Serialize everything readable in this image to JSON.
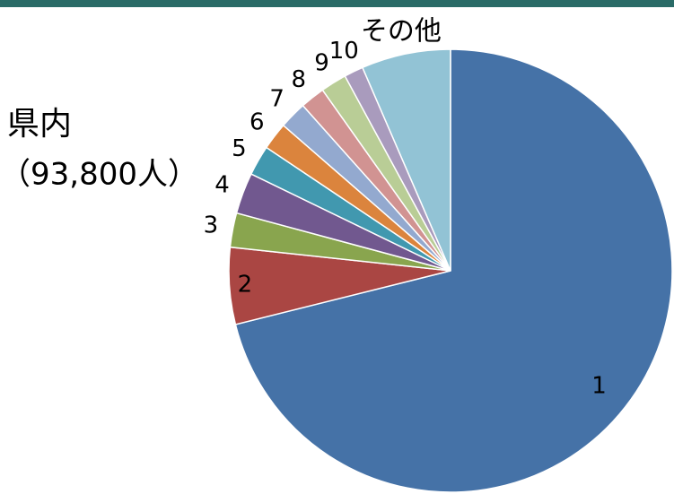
{
  "chart_data": {
    "type": "pie",
    "title": "県内",
    "subtitle": "（93,800人）",
    "categories": [
      "1",
      "2",
      "3",
      "4",
      "5",
      "6",
      "7",
      "8",
      "9",
      "10",
      "その他"
    ],
    "values": [
      71.1,
      5.6,
      2.5,
      3.0,
      2.2,
      2.0,
      2.0,
      1.8,
      1.9,
      1.4,
      6.5
    ],
    "colors": [
      "#4572a7",
      "#aa4643",
      "#89a54e",
      "#71588f",
      "#4198af",
      "#db843d",
      "#93a9cf",
      "#d19392",
      "#b9cd96",
      "#a99bbd",
      "#92c3d5"
    ]
  }
}
